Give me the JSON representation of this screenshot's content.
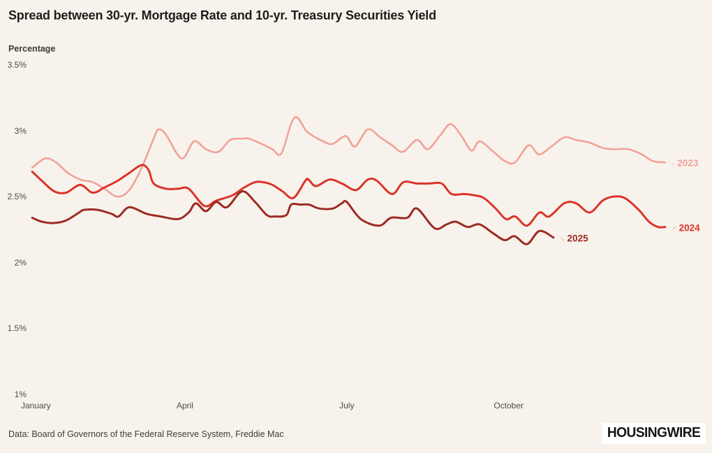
{
  "title": "Spread between 30-yr. Mortgage Rate and 10-yr. Treasury Securities Yield",
  "y_axis": {
    "label": "Percentage",
    "tick_labels": [
      "3.5%",
      "3%",
      "2.5%",
      "2%",
      "1.5%",
      "1%"
    ],
    "tick_values": [
      3.5,
      3,
      2.5,
      2,
      1.5,
      1
    ]
  },
  "x_axis": {
    "tick_labels": [
      "January",
      "April",
      "July",
      "October"
    ],
    "tick_month_positions": [
      0,
      3,
      6,
      9
    ]
  },
  "footer": {
    "source": "Data: Board of Governors of the Federal Reserve System, Freddie Mac",
    "logo": "HOUSINGWIRE"
  },
  "chart_data": {
    "type": "line",
    "title": "Spread between 30-yr. Mortgage Rate and 10-yr. Treasury Securities Yield",
    "ylabel": "Percentage",
    "ylim": [
      1,
      3.5
    ],
    "xlim_months": [
      0,
      12
    ],
    "x_unit": "month position (0 = January, 11 = December), weekly data",
    "grid": false,
    "legend_position": "line-end-labels",
    "background": "#f7f3ec",
    "series": [
      {
        "name": "2023",
        "color": "#f2a19a",
        "stroke_width": 2.6,
        "end_marker": "–",
        "points": [
          [
            0.17,
            2.72
          ],
          [
            0.41,
            2.79
          ],
          [
            0.61,
            2.76
          ],
          [
            0.83,
            2.68
          ],
          [
            1.06,
            2.63
          ],
          [
            1.29,
            2.61
          ],
          [
            1.51,
            2.56
          ],
          [
            1.75,
            2.5
          ],
          [
            1.97,
            2.55
          ],
          [
            2.2,
            2.72
          ],
          [
            2.42,
            2.94
          ],
          [
            2.51,
            3.01
          ],
          [
            2.65,
            2.97
          ],
          [
            2.94,
            2.79
          ],
          [
            3.17,
            2.92
          ],
          [
            3.39,
            2.86
          ],
          [
            3.62,
            2.84
          ],
          [
            3.84,
            2.93
          ],
          [
            4.06,
            2.94
          ],
          [
            4.19,
            2.94
          ],
          [
            4.42,
            2.9
          ],
          [
            4.62,
            2.86
          ],
          [
            4.79,
            2.83
          ],
          [
            5.03,
            3.1
          ],
          [
            5.27,
            2.99
          ],
          [
            5.56,
            2.92
          ],
          [
            5.74,
            2.9
          ],
          [
            5.98,
            2.96
          ],
          [
            6.15,
            2.88
          ],
          [
            6.39,
            3.01
          ],
          [
            6.62,
            2.95
          ],
          [
            6.84,
            2.89
          ],
          [
            7.04,
            2.84
          ],
          [
            7.3,
            2.93
          ],
          [
            7.5,
            2.86
          ],
          [
            7.72,
            2.96
          ],
          [
            7.92,
            3.05
          ],
          [
            8.11,
            2.97
          ],
          [
            8.31,
            2.85
          ],
          [
            8.46,
            2.92
          ],
          [
            8.69,
            2.85
          ],
          [
            8.93,
            2.77
          ],
          [
            9.12,
            2.76
          ],
          [
            9.37,
            2.89
          ],
          [
            9.56,
            2.82
          ],
          [
            9.79,
            2.88
          ],
          [
            10.03,
            2.95
          ],
          [
            10.25,
            2.93
          ],
          [
            10.5,
            2.91
          ],
          [
            10.74,
            2.87
          ],
          [
            10.96,
            2.86
          ],
          [
            11.22,
            2.86
          ],
          [
            11.47,
            2.82
          ],
          [
            11.67,
            2.77
          ],
          [
            11.9,
            2.76
          ]
        ]
      },
      {
        "name": "2024",
        "color": "#db3429",
        "stroke_width": 3,
        "end_marker": "↗",
        "points": [
          [
            0.17,
            2.69
          ],
          [
            0.35,
            2.62
          ],
          [
            0.58,
            2.54
          ],
          [
            0.8,
            2.53
          ],
          [
            1.06,
            2.59
          ],
          [
            1.29,
            2.53
          ],
          [
            1.51,
            2.57
          ],
          [
            1.75,
            2.62
          ],
          [
            1.97,
            2.68
          ],
          [
            2.2,
            2.74
          ],
          [
            2.33,
            2.7
          ],
          [
            2.42,
            2.6
          ],
          [
            2.65,
            2.56
          ],
          [
            2.88,
            2.56
          ],
          [
            3.07,
            2.56
          ],
          [
            3.36,
            2.43
          ],
          [
            3.58,
            2.47
          ],
          [
            3.88,
            2.51
          ],
          [
            4.1,
            2.57
          ],
          [
            4.3,
            2.61
          ],
          [
            4.45,
            2.61
          ],
          [
            4.62,
            2.59
          ],
          [
            4.81,
            2.54
          ],
          [
            5.01,
            2.49
          ],
          [
            5.23,
            2.62
          ],
          [
            5.29,
            2.63
          ],
          [
            5.43,
            2.58
          ],
          [
            5.68,
            2.63
          ],
          [
            5.91,
            2.6
          ],
          [
            6.17,
            2.55
          ],
          [
            6.39,
            2.63
          ],
          [
            6.56,
            2.62
          ],
          [
            6.84,
            2.52
          ],
          [
            7.05,
            2.61
          ],
          [
            7.3,
            2.6
          ],
          [
            7.53,
            2.6
          ],
          [
            7.76,
            2.6
          ],
          [
            7.94,
            2.52
          ],
          [
            8.18,
            2.52
          ],
          [
            8.37,
            2.51
          ],
          [
            8.54,
            2.49
          ],
          [
            8.76,
            2.41
          ],
          [
            8.95,
            2.33
          ],
          [
            9.12,
            2.35
          ],
          [
            9.34,
            2.28
          ],
          [
            9.57,
            2.38
          ],
          [
            9.75,
            2.35
          ],
          [
            10.03,
            2.45
          ],
          [
            10.25,
            2.45
          ],
          [
            10.5,
            2.38
          ],
          [
            10.74,
            2.47
          ],
          [
            10.93,
            2.5
          ],
          [
            11.15,
            2.49
          ],
          [
            11.41,
            2.4
          ],
          [
            11.6,
            2.31
          ],
          [
            11.77,
            2.27
          ],
          [
            11.9,
            2.27
          ]
        ]
      },
      {
        "name": "2025",
        "color": "#9d2b23",
        "stroke_width": 3,
        "end_marker": "↘",
        "points": [
          [
            0.17,
            2.34
          ],
          [
            0.35,
            2.31
          ],
          [
            0.58,
            2.3
          ],
          [
            0.8,
            2.32
          ],
          [
            1.04,
            2.38
          ],
          [
            1.13,
            2.4
          ],
          [
            1.38,
            2.4
          ],
          [
            1.64,
            2.37
          ],
          [
            1.77,
            2.35
          ],
          [
            1.97,
            2.42
          ],
          [
            2.29,
            2.37
          ],
          [
            2.55,
            2.35
          ],
          [
            2.87,
            2.33
          ],
          [
            3.07,
            2.38
          ],
          [
            3.2,
            2.45
          ],
          [
            3.39,
            2.39
          ],
          [
            3.58,
            2.46
          ],
          [
            3.78,
            2.42
          ],
          [
            4.06,
            2.54
          ],
          [
            4.3,
            2.46
          ],
          [
            4.52,
            2.36
          ],
          [
            4.68,
            2.35
          ],
          [
            4.88,
            2.36
          ],
          [
            4.97,
            2.44
          ],
          [
            5.14,
            2.44
          ],
          [
            5.3,
            2.44
          ],
          [
            5.49,
            2.41
          ],
          [
            5.74,
            2.41
          ],
          [
            5.91,
            2.45
          ],
          [
            6.0,
            2.46
          ],
          [
            6.26,
            2.33
          ],
          [
            6.6,
            2.28
          ],
          [
            6.82,
            2.34
          ],
          [
            7.12,
            2.34
          ],
          [
            7.3,
            2.41
          ],
          [
            7.63,
            2.26
          ],
          [
            7.85,
            2.29
          ],
          [
            8.02,
            2.31
          ],
          [
            8.24,
            2.27
          ],
          [
            8.46,
            2.29
          ],
          [
            8.72,
            2.22
          ],
          [
            8.93,
            2.17
          ],
          [
            9.11,
            2.2
          ],
          [
            9.34,
            2.14
          ],
          [
            9.57,
            2.24
          ],
          [
            9.83,
            2.19
          ]
        ]
      }
    ]
  }
}
